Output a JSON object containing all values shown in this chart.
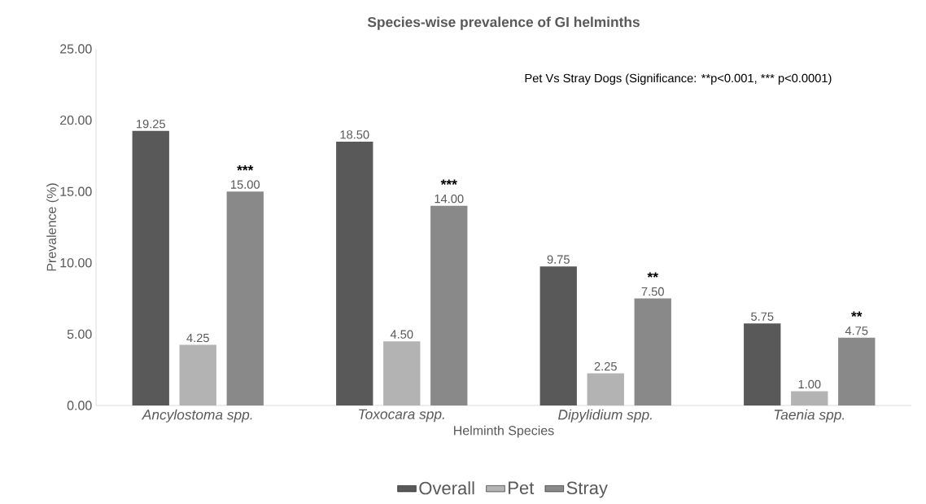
{
  "chart_data": {
    "type": "bar",
    "title": "Species-wise prevalence of GI helminths",
    "xlabel": "Helminth Species",
    "ylabel": "Prevalence (%)",
    "categories": [
      "Ancylostoma spp.",
      "Toxocara spp.",
      "Dipylidium spp.",
      "Taenia spp."
    ],
    "series": [
      {
        "name": "Overall",
        "color": "#595959",
        "values": [
          19.25,
          18.5,
          9.75,
          5.75
        ],
        "value_labels": [
          "19.25",
          "18.50",
          "9.75",
          "5.75"
        ]
      },
      {
        "name": "Pet",
        "color": "#b3b3b3",
        "values": [
          4.25,
          4.5,
          2.25,
          1.0
        ],
        "value_labels": [
          "4.25",
          "4.50",
          "2.25",
          "1.00"
        ]
      },
      {
        "name": "Stray",
        "color": "#898989",
        "values": [
          15.0,
          14.0,
          7.5,
          4.75
        ],
        "value_labels": [
          "15.00",
          "14.00",
          "7.50",
          "4.75"
        ]
      }
    ],
    "ylim": [
      0,
      25
    ],
    "yticks": [
      {
        "value": 0,
        "label": "0.00"
      },
      {
        "value": 5,
        "label": "5.00"
      },
      {
        "value": 10,
        "label": "10.00"
      },
      {
        "value": 15,
        "label": "15.00"
      },
      {
        "value": 20,
        "label": "20.00"
      },
      {
        "value": 25,
        "label": "25.00"
      }
    ],
    "legend": "bottom",
    "annotations": [
      "Pet Vs Stray Dogs (Significance: **p<0.001,",
      "*** p<0.0001)",
      "***",
      "***",
      "**",
      "**"
    ]
  }
}
